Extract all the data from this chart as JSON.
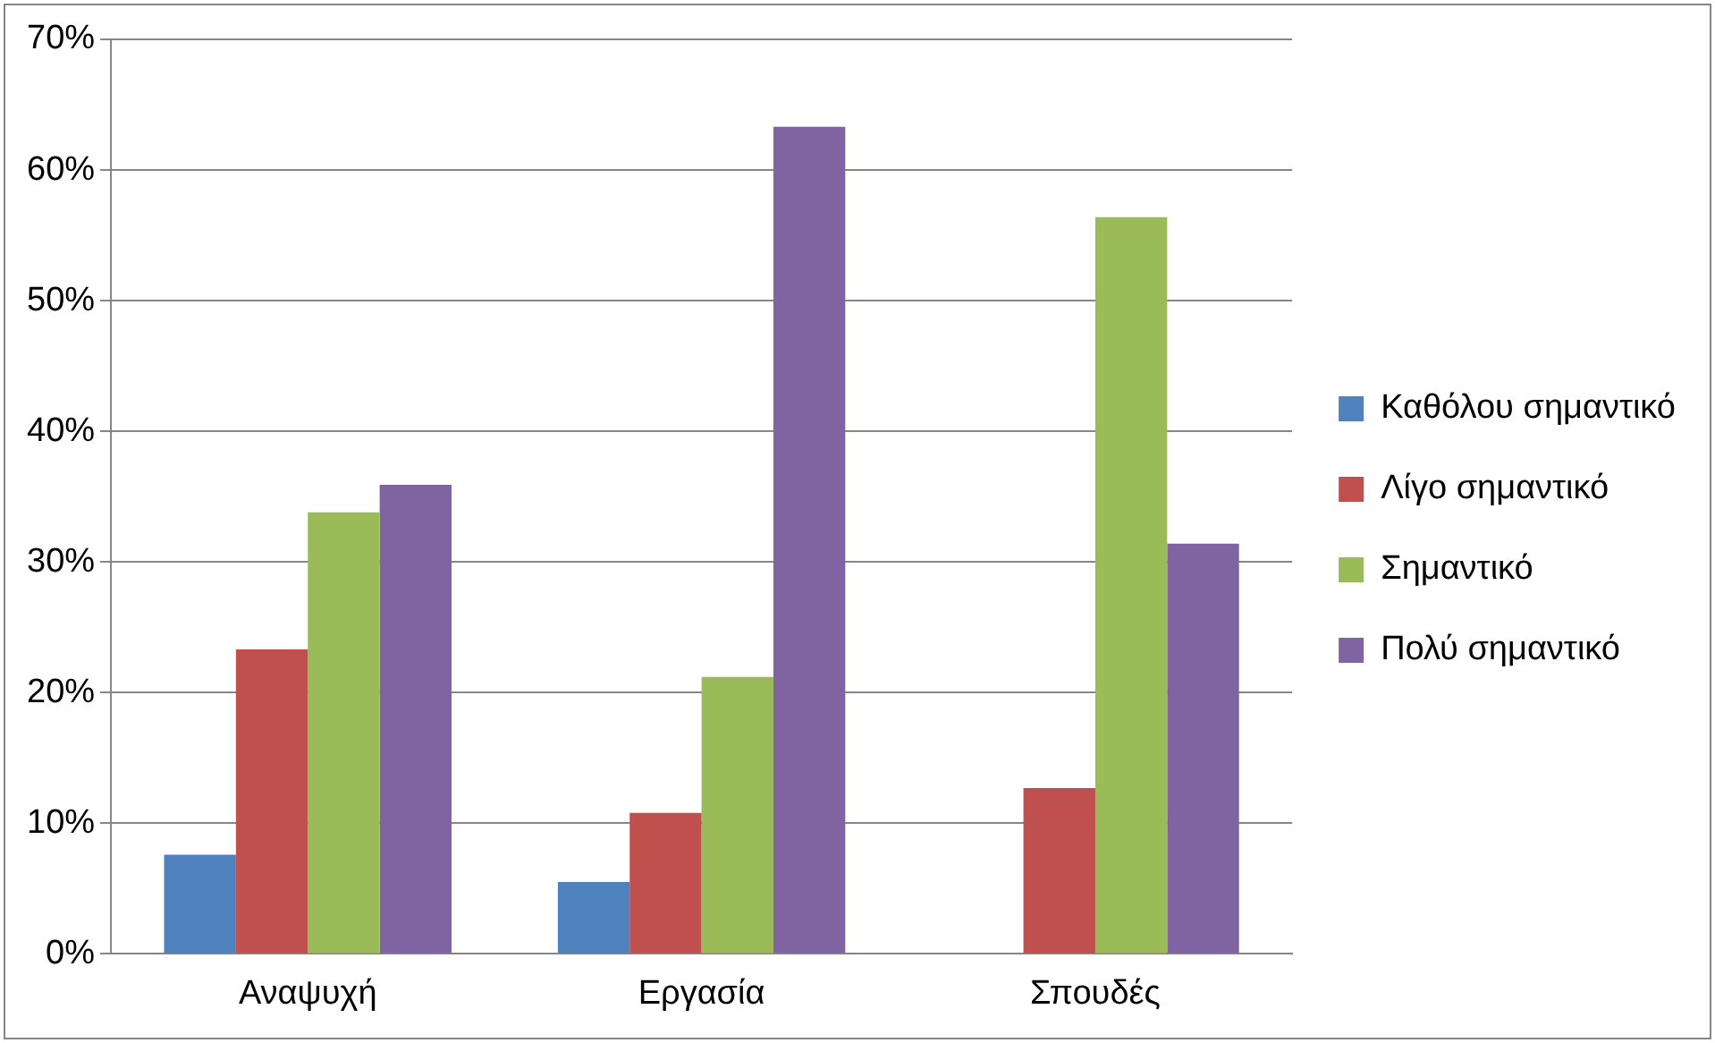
{
  "chart_data": {
    "type": "bar",
    "categories": [
      "Αναψυχή",
      "Εργασία",
      "Σπουδές"
    ],
    "series": [
      {
        "name": "Καθόλου σημαντικό",
        "color": "#4f81bd",
        "values": [
          7.6,
          5.5,
          0
        ]
      },
      {
        "name": "Λίγο σημαντικό",
        "color": "#c0504d",
        "values": [
          23.3,
          10.8,
          12.7
        ]
      },
      {
        "name": "Σημαντικό",
        "color": "#9bbb59",
        "values": [
          33.8,
          21.2,
          56.4
        ]
      },
      {
        "name": "Πολύ σημαντικό",
        "color": "#8064a2",
        "values": [
          35.9,
          63.3,
          31.4
        ]
      }
    ],
    "ylim": [
      0,
      70
    ],
    "yticks": [
      {
        "value": 0,
        "label": "0%"
      },
      {
        "value": 10,
        "label": "10%"
      },
      {
        "value": 20,
        "label": "20%"
      },
      {
        "value": 30,
        "label": "30%"
      },
      {
        "value": 40,
        "label": "40%"
      },
      {
        "value": 50,
        "label": "50%"
      },
      {
        "value": 60,
        "label": "60%"
      },
      {
        "value": 70,
        "label": "70%"
      }
    ],
    "grid": "y",
    "legend": "right"
  }
}
